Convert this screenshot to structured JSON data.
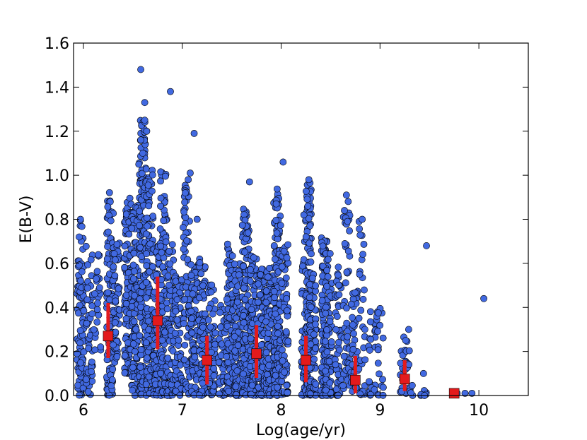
{
  "chart_data": {
    "type": "scatter",
    "xlabel": "Log(age/yr)",
    "ylabel": "E(B-V)",
    "xlim": [
      5.9,
      10.5
    ],
    "ylim": [
      0.0,
      1.6
    ],
    "xticks": [
      6,
      7,
      8,
      9,
      10
    ],
    "xtick_labels": [
      "6",
      "7",
      "8",
      "9",
      "10"
    ],
    "yticks": [
      0.0,
      0.2,
      0.4,
      0.6,
      0.8,
      1.0,
      1.2,
      1.4,
      1.6
    ],
    "ytick_labels": [
      "0.0",
      "0.2",
      "0.4",
      "0.6",
      "0.8",
      "1.0",
      "1.2",
      "1.4",
      "1.6"
    ],
    "grid": false,
    "legend": "none",
    "colors": {
      "points": "#4169e1",
      "point_edge": "#000000",
      "medians": "#e31a1c"
    },
    "series": [
      {
        "kind": "scatter",
        "columns": [
          {
            "x": 5.97,
            "ymin": 0.0,
            "ymax": 0.8,
            "count": 95
          },
          {
            "x": 6.06,
            "ymin": 0.0,
            "ymax": 0.7,
            "count": 45
          },
          {
            "x": 6.14,
            "ymin": 0.2,
            "ymax": 0.65,
            "count": 25
          },
          {
            "x": 6.27,
            "ymin": 0.0,
            "ymax": 0.93,
            "count": 110
          },
          {
            "x": 6.33,
            "ymin": 0.15,
            "ymax": 0.7,
            "count": 60
          },
          {
            "x": 6.45,
            "ymin": 0.1,
            "ymax": 0.9,
            "count": 120
          },
          {
            "x": 6.52,
            "ymin": 0.0,
            "ymax": 0.9,
            "count": 110
          },
          {
            "x": 6.6,
            "ymin": 0.0,
            "ymax": 1.25,
            "count": 160
          },
          {
            "x": 6.67,
            "ymin": 0.0,
            "ymax": 1.05,
            "count": 120
          },
          {
            "x": 6.74,
            "ymin": 0.0,
            "ymax": 0.7,
            "count": 90
          },
          {
            "x": 6.81,
            "ymin": 0.0,
            "ymax": 1.03,
            "count": 110
          },
          {
            "x": 6.88,
            "ymin": 0.0,
            "ymax": 0.7,
            "count": 70
          },
          {
            "x": 6.96,
            "ymin": 0.0,
            "ymax": 0.55,
            "count": 60
          },
          {
            "x": 7.04,
            "ymin": 0.0,
            "ymax": 0.96,
            "count": 70
          },
          {
            "x": 7.12,
            "ymin": 0.0,
            "ymax": 0.6,
            "count": 90
          },
          {
            "x": 7.2,
            "ymin": 0.0,
            "ymax": 0.62,
            "count": 80
          },
          {
            "x": 7.3,
            "ymin": 0.0,
            "ymax": 0.52,
            "count": 70
          },
          {
            "x": 7.4,
            "ymin": 0.0,
            "ymax": 0.42,
            "count": 40
          },
          {
            "x": 7.48,
            "ymin": 0.0,
            "ymax": 0.69,
            "count": 110
          },
          {
            "x": 7.56,
            "ymin": 0.0,
            "ymax": 0.6,
            "count": 90
          },
          {
            "x": 7.64,
            "ymin": 0.0,
            "ymax": 0.85,
            "count": 130
          },
          {
            "x": 7.72,
            "ymin": 0.0,
            "ymax": 0.64,
            "count": 110
          },
          {
            "x": 7.8,
            "ymin": 0.0,
            "ymax": 0.58,
            "count": 90
          },
          {
            "x": 7.88,
            "ymin": 0.0,
            "ymax": 0.58,
            "count": 90
          },
          {
            "x": 7.96,
            "ymin": 0.0,
            "ymax": 0.94,
            "count": 150
          },
          {
            "x": 8.04,
            "ymin": 0.0,
            "ymax": 0.72,
            "count": 70
          },
          {
            "x": 8.24,
            "ymin": 0.0,
            "ymax": 0.72,
            "count": 60
          },
          {
            "x": 8.28,
            "ymin": 0.0,
            "ymax": 0.98,
            "count": 130
          },
          {
            "x": 8.32,
            "ymin": 0.0,
            "ymax": 0.58,
            "count": 70
          },
          {
            "x": 8.44,
            "ymin": 0.0,
            "ymax": 0.72,
            "count": 110
          },
          {
            "x": 8.48,
            "ymin": 0.0,
            "ymax": 0.66,
            "count": 70
          },
          {
            "x": 8.58,
            "ymin": 0.0,
            "ymax": 0.59,
            "count": 50
          },
          {
            "x": 8.66,
            "ymin": 0.0,
            "ymax": 0.91,
            "count": 50
          },
          {
            "x": 8.74,
            "ymin": 0.0,
            "ymax": 0.49,
            "count": 40
          },
          {
            "x": 8.82,
            "ymin": 0.0,
            "ymax": 0.8,
            "count": 30
          },
          {
            "x": 8.92,
            "ymin": 0.0,
            "ymax": 0.42,
            "count": 25
          },
          {
            "x": 9.0,
            "ymin": 0.0,
            "ymax": 0.4,
            "count": 20
          },
          {
            "x": 9.24,
            "ymin": 0.0,
            "ymax": 0.3,
            "count": 20
          },
          {
            "x": 9.3,
            "ymin": 0.0,
            "ymax": 0.22,
            "count": 12
          },
          {
            "x": 9.44,
            "ymin": 0.0,
            "ymax": 0.1,
            "count": 5
          }
        ],
        "extra_points": [
          {
            "x": 6.58,
            "y": 1.48
          },
          {
            "x": 6.62,
            "y": 1.33
          },
          {
            "x": 6.88,
            "y": 1.38
          },
          {
            "x": 7.12,
            "y": 1.19
          },
          {
            "x": 7.08,
            "y": 1.01
          },
          {
            "x": 6.78,
            "y": 0.86
          },
          {
            "x": 7.68,
            "y": 0.97
          },
          {
            "x": 8.02,
            "y": 1.06
          },
          {
            "x": 7.95,
            "y": 0.87
          },
          {
            "x": 8.28,
            "y": 0.98
          },
          {
            "x": 8.66,
            "y": 0.91
          },
          {
            "x": 8.82,
            "y": 0.8
          },
          {
            "x": 9.47,
            "y": 0.68
          },
          {
            "x": 10.05,
            "y": 0.44
          },
          {
            "x": 5.97,
            "y": 0.8
          },
          {
            "x": 7.15,
            "y": 0.8
          },
          {
            "x": 6.56,
            "y": 1.05
          },
          {
            "x": 6.6,
            "y": 1.1
          },
          {
            "x": 6.58,
            "y": 1.16
          },
          {
            "x": 6.64,
            "y": 1.2
          },
          {
            "x": 6.62,
            "y": 1.25
          },
          {
            "x": 7.03,
            "y": 0.92
          },
          {
            "x": 7.06,
            "y": 0.98
          },
          {
            "x": 8.27,
            "y": 0.86
          },
          {
            "x": 8.23,
            "y": 0.82
          },
          {
            "x": 9.44,
            "y": 0.1
          },
          {
            "x": 9.74,
            "y": 0.01
          },
          {
            "x": 9.78,
            "y": 0.01
          },
          {
            "x": 9.86,
            "y": 0.01
          },
          {
            "x": 9.93,
            "y": 0.01
          },
          {
            "x": 9.45,
            "y": 0.0
          },
          {
            "x": 9.29,
            "y": 0.3
          },
          {
            "x": 9.26,
            "y": 0.25
          }
        ]
      },
      {
        "kind": "median-errorbar",
        "points": [
          {
            "x": 6.25,
            "y": 0.27,
            "ylow": 0.17,
            "yhigh": 0.42
          },
          {
            "x": 6.75,
            "y": 0.34,
            "ylow": 0.21,
            "yhigh": 0.54
          },
          {
            "x": 7.25,
            "y": 0.16,
            "ylow": 0.05,
            "yhigh": 0.27
          },
          {
            "x": 7.75,
            "y": 0.19,
            "ylow": 0.08,
            "yhigh": 0.32
          },
          {
            "x": 8.25,
            "y": 0.16,
            "ylow": 0.06,
            "yhigh": 0.27
          },
          {
            "x": 8.75,
            "y": 0.07,
            "ylow": 0.01,
            "yhigh": 0.18
          },
          {
            "x": 9.25,
            "y": 0.075,
            "ylow": 0.02,
            "yhigh": 0.16
          },
          {
            "x": 9.75,
            "y": 0.01,
            "ylow": 0.0,
            "yhigh": 0.02
          }
        ]
      }
    ]
  }
}
